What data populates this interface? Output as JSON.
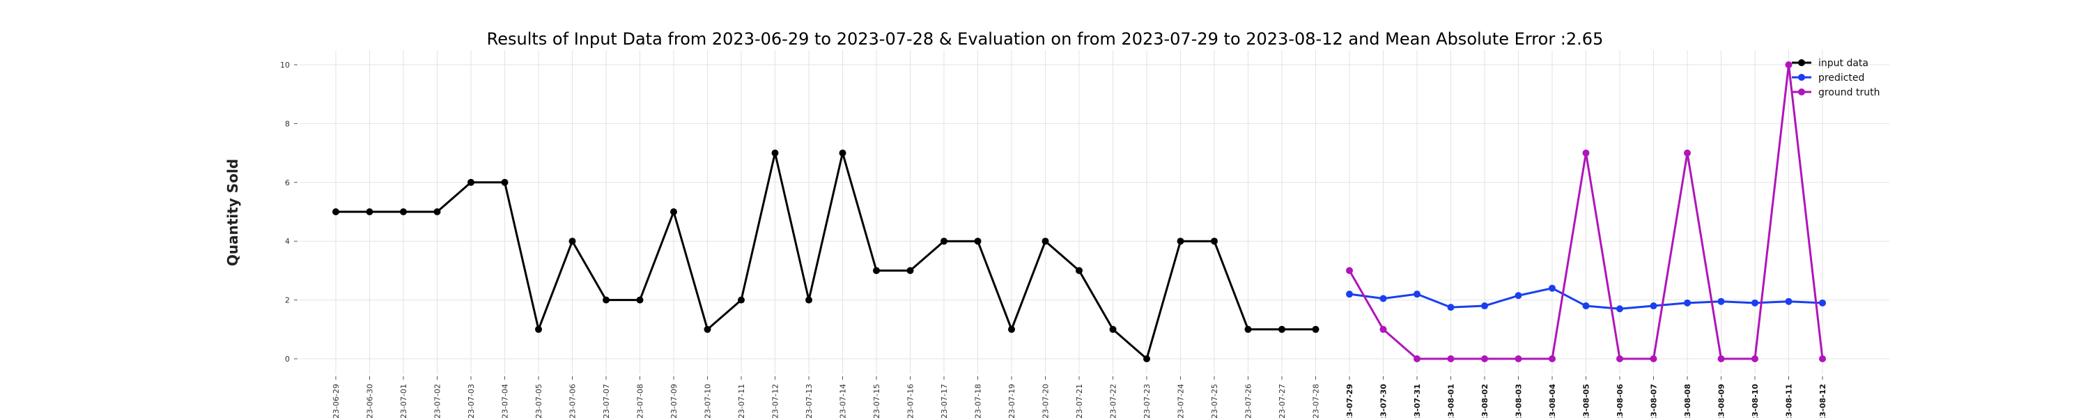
{
  "chart_data": {
    "type": "line",
    "title": "Results of Input Data from 2023-06-29 to 2023-07-28 & Evaluation on from 2023-07-29 to 2023-08-12 and Mean Absolute Error  :2.65",
    "xlabel": "",
    "ylabel": "Quantity Sold",
    "ylim": [
      0,
      10
    ],
    "yticks": [
      "0",
      "2",
      "4",
      "6",
      "8",
      "10"
    ],
    "grid": true,
    "legend_position": "top-right",
    "x_tick_labels": [
      "-23-06-29",
      "-23-06-30",
      "-23-07-01",
      "-23-07-02",
      "-23-07-03",
      "-23-07-04",
      "-23-07-05",
      "-23-07-06",
      "-23-07-07",
      "-23-07-08",
      "-23-07-09",
      "-23-07-10",
      "-23-07-11",
      "-23-07-12",
      "-23-07-13",
      "-23-07-14",
      "-23-07-15",
      "-23-07-16",
      "-23-07-17",
      "-23-07-18",
      "-23-07-19",
      "-23-07-20",
      "-23-07-21",
      "-23-07-22",
      "-23-07-23",
      "-23-07-24",
      "-23-07-25",
      "-23-07-26",
      "-23-07-27",
      "-23-07-28",
      "-23-07-29",
      "-23-07-30",
      "-23-07-31",
      "-23-08-01",
      "-23-08-02",
      "-23-08-03",
      "-23-08-04",
      "-23-08-05",
      "-23-08-06",
      "-23-08-07",
      "-23-08-08",
      "-23-08-09",
      "-23-08-10",
      "-23-08-11",
      "-23-08-12"
    ],
    "bold_tick_start_index": 30,
    "series": [
      {
        "name": "input data",
        "color": "#000000",
        "start_index": 0,
        "values": [
          5,
          5,
          5,
          5,
          6,
          6,
          1,
          4,
          2,
          2,
          5,
          1,
          2,
          7,
          2,
          7,
          3,
          3,
          4,
          4,
          1,
          4,
          3,
          1,
          0,
          4,
          4,
          1,
          1,
          1
        ]
      },
      {
        "name": "predicted",
        "color": "#1a3ff0",
        "start_index": 30,
        "values": [
          2.2,
          2.05,
          2.2,
          1.75,
          1.8,
          2.15,
          2.4,
          1.8,
          1.7,
          1.8,
          1.9,
          1.95,
          1.9,
          1.95,
          1.9
        ]
      },
      {
        "name": "ground truth",
        "color": "#b015b9",
        "start_index": 30,
        "values": [
          3,
          1,
          0,
          0,
          0,
          0,
          0,
          7,
          0,
          0,
          7,
          0,
          0,
          10,
          0
        ]
      }
    ]
  }
}
